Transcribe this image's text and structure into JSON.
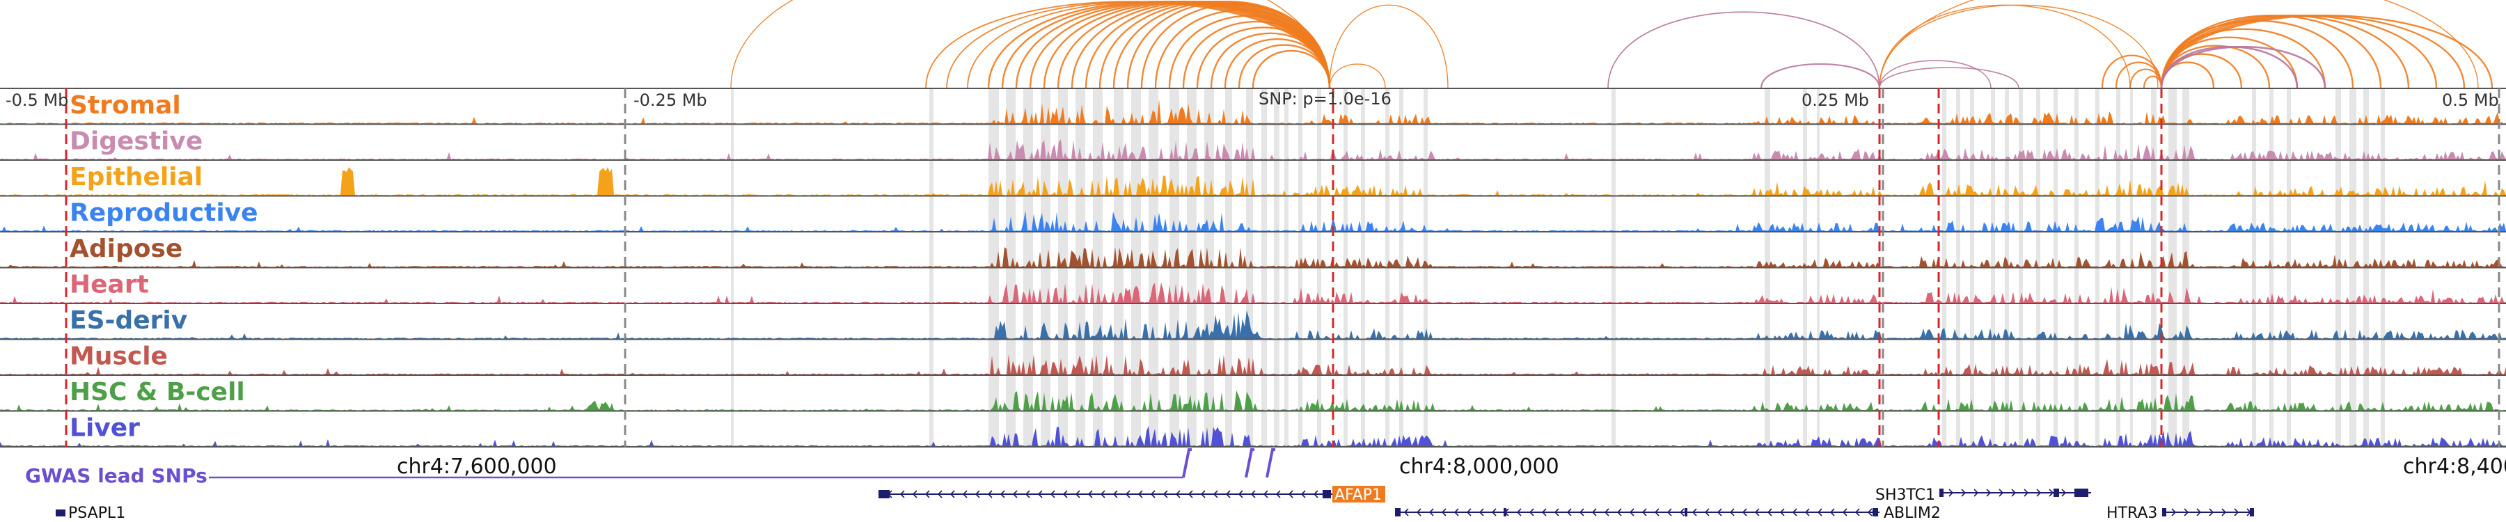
{
  "tracks": [
    {
      "name": "Stromal",
      "color": "#f07b1e"
    },
    {
      "name": "Digestive",
      "color": "#c98bb0"
    },
    {
      "name": "Epithelial",
      "color": "#f5a21b"
    },
    {
      "name": "Reproductive",
      "color": "#3b83f0"
    },
    {
      "name": "Adipose",
      "color": "#a35230"
    },
    {
      "name": "Heart",
      "color": "#db6677"
    },
    {
      "name": "ES-deriv",
      "color": "#3a70aa"
    },
    {
      "name": "Muscle",
      "color": "#c15852"
    },
    {
      "name": "HSC & B-cell",
      "color": "#4ea048"
    },
    {
      "name": "Liver",
      "color": "#5151d6"
    }
  ],
  "offset_labels": [
    "-0.5 Mb",
    "-0.25 Mb",
    "0.25 Mb",
    "0.5 Mb"
  ],
  "snp_label": "SNP: p=1.0e-16",
  "coordinate_labels": [
    "chr4:7,600,000",
    "chr4:8,000,000",
    "chr4:8,400"
  ],
  "gwas_label": "GWAS lead SNPs",
  "genes": [
    {
      "name": "PSAPL1",
      "strand": "+",
      "highlight": false
    },
    {
      "name": "AFAP1",
      "strand": "-",
      "highlight": true,
      "highlight_color": "#f07b1e"
    },
    {
      "name": "ABLIM2",
      "strand": "-",
      "highlight": false
    },
    {
      "name": "SH3TC1",
      "strand": "+",
      "highlight": false
    },
    {
      "name": "HTRA3",
      "strand": "+",
      "highlight": false
    }
  ],
  "colors": {
    "frame": "#555555",
    "marker_red": "#d62728",
    "marker_gray": "#888888",
    "shading": "#dcdcdc",
    "gene": "#1d1d6e",
    "gwas": "#6b4fd1",
    "arc_orange": "#f07b1e",
    "arc_mauve": "#b8769b"
  }
}
